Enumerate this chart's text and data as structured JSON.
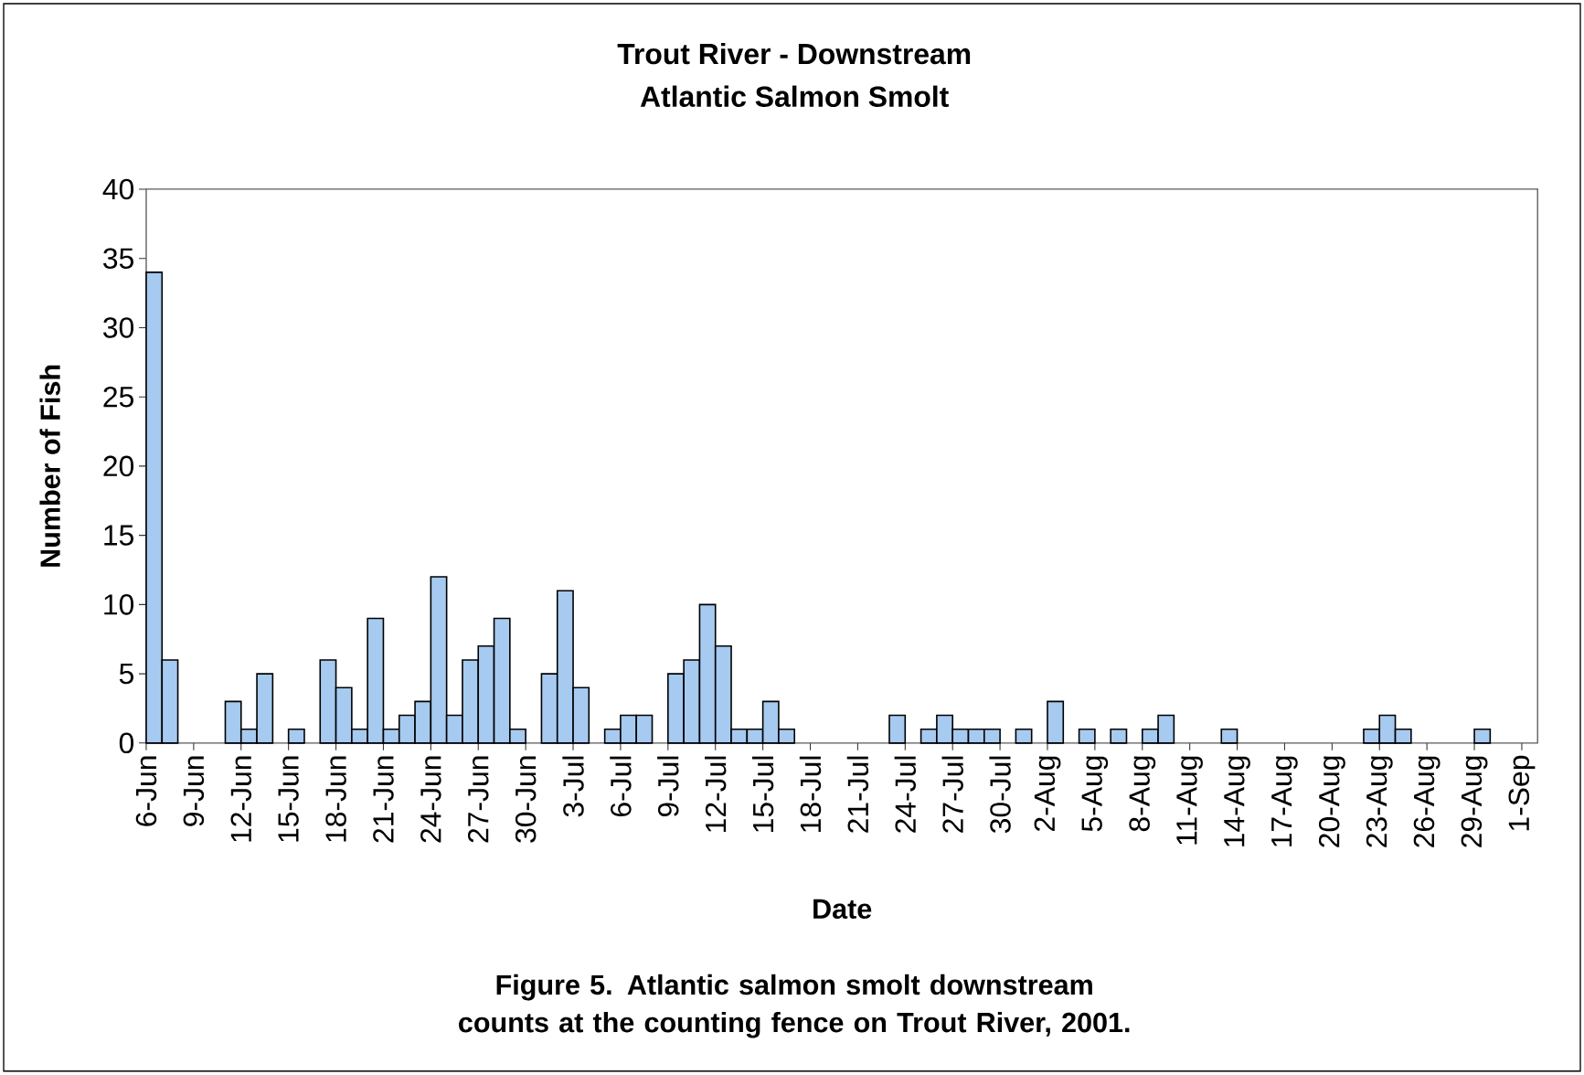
{
  "chart_data": {
    "type": "bar",
    "title": "Trout River - Downstream",
    "subtitle": "Atlantic Salmon Smolt",
    "xlabel": "Date",
    "ylabel": "Number of Fish",
    "annotations": [
      "Figure 5. Atlantic salmon smolt downstream counts at the counting fence on Trout River, 2001."
    ],
    "color": "#a6caf0",
    "x": [
      "2001-06-06T12:00",
      "2001-06-07T12:00",
      "2001-06-08T12:00",
      "2001-06-09T12:00",
      "2001-06-10T12:00",
      "2001-06-11T12:00",
      "2001-06-12T12:00",
      "2001-06-13T12:00",
      "2001-06-14T12:00",
      "2001-06-15T12:00",
      "2001-06-16T12:00",
      "2001-06-17T12:00",
      "2001-06-18T12:00",
      "2001-06-19T12:00",
      "2001-06-20T12:00",
      "2001-06-21T12:00",
      "2001-06-22T12:00",
      "2001-06-23T12:00",
      "2001-06-24T12:00",
      "2001-06-25T12:00",
      "2001-06-26T12:00",
      "2001-06-27T12:00",
      "2001-06-28T12:00",
      "2001-06-29T12:00",
      "2001-06-30T12:00",
      "2001-07-01T12:00",
      "2001-07-02T12:00",
      "2001-07-03T12:00",
      "2001-07-04T12:00",
      "2001-07-05T12:00",
      "2001-07-06T12:00",
      "2001-07-07T12:00",
      "2001-07-08T12:00",
      "2001-07-09T12:00",
      "2001-07-10T12:00",
      "2001-07-11T12:00",
      "2001-07-12T12:00",
      "2001-07-13T12:00",
      "2001-07-14T12:00",
      "2001-07-15T12:00",
      "2001-07-16T12:00",
      "2001-07-17T12:00",
      "2001-07-18T12:00",
      "2001-07-19T12:00",
      "2001-07-20T12:00",
      "2001-07-21T12:00",
      "2001-07-22T12:00",
      "2001-07-23T12:00",
      "2001-07-24T12:00",
      "2001-07-25T12:00",
      "2001-07-26T12:00",
      "2001-07-27T12:00",
      "2001-07-28T12:00",
      "2001-07-29T12:00",
      "2001-07-30T12:00",
      "2001-07-31T12:00",
      "2001-08-01T12:00",
      "2001-08-02T12:00",
      "2001-08-03T12:00",
      "2001-08-04T12:00",
      "2001-08-05T12:00",
      "2001-08-06T12:00",
      "2001-08-07T12:00",
      "2001-08-08T12:00",
      "2001-08-09T12:00",
      "2001-08-10T12:00",
      "2001-08-11T12:00",
      "2001-08-12T12:00",
      "2001-08-13T12:00",
      "2001-08-14T12:00",
      "2001-08-15T12:00",
      "2001-08-16T12:00",
      "2001-08-17T12:00",
      "2001-08-18T12:00",
      "2001-08-19T12:00",
      "2001-08-20T12:00",
      "2001-08-21T12:00",
      "2001-08-22T12:00",
      "2001-08-23T12:00",
      "2001-08-24T12:00",
      "2001-08-25T12:00",
      "2001-08-26T12:00",
      "2001-08-27T12:00",
      "2001-08-28T12:00",
      "2001-08-29T12:00",
      "2001-08-30T12:00",
      "2001-08-31T12:00",
      "2001-09-01T12:00"
    ],
    "values": [
      34,
      6,
      0,
      0,
      0,
      3,
      1,
      5,
      0,
      1,
      0,
      6,
      4,
      1,
      9,
      1,
      2,
      3,
      12,
      2,
      6,
      7,
      9,
      1,
      0,
      5,
      11,
      4,
      0,
      1,
      2,
      2,
      0,
      5,
      6,
      10,
      7,
      1,
      1,
      3,
      1,
      0,
      0,
      0,
      0,
      0,
      0,
      2,
      0,
      1,
      2,
      1,
      1,
      1,
      0,
      1,
      0,
      3,
      0,
      1,
      0,
      1,
      0,
      1,
      2,
      0,
      0,
      0,
      1,
      0,
      0,
      0,
      0,
      0,
      0,
      0,
      0,
      1,
      2,
      1,
      0,
      0,
      0,
      0,
      1,
      0,
      0,
      0
    ],
    "xlim": [
      "2001-06-06",
      "2001-09-02"
    ],
    "xticks": [
      {
        "value": "2001-06-06",
        "label": "6-Jun"
      },
      {
        "value": "2001-06-09",
        "label": "9-Jun"
      },
      {
        "value": "2001-06-12",
        "label": "12-Jun"
      },
      {
        "value": "2001-06-15",
        "label": "15-Jun"
      },
      {
        "value": "2001-06-18",
        "label": "18-Jun"
      },
      {
        "value": "2001-06-21",
        "label": "21-Jun"
      },
      {
        "value": "2001-06-24",
        "label": "24-Jun"
      },
      {
        "value": "2001-06-27",
        "label": "27-Jun"
      },
      {
        "value": "2001-06-30",
        "label": "30-Jun"
      },
      {
        "value": "2001-07-03",
        "label": "3-Jul"
      },
      {
        "value": "2001-07-06",
        "label": "6-Jul"
      },
      {
        "value": "2001-07-09",
        "label": "9-Jul"
      },
      {
        "value": "2001-07-12",
        "label": "12-Jul"
      },
      {
        "value": "2001-07-15",
        "label": "15-Jul"
      },
      {
        "value": "2001-07-18",
        "label": "18-Jul"
      },
      {
        "value": "2001-07-21",
        "label": "21-Jul"
      },
      {
        "value": "2001-07-24",
        "label": "24-Jul"
      },
      {
        "value": "2001-07-27",
        "label": "27-Jul"
      },
      {
        "value": "2001-07-30",
        "label": "30-Jul"
      },
      {
        "value": "2001-08-02",
        "label": "2-Aug"
      },
      {
        "value": "2001-08-05",
        "label": "5-Aug"
      },
      {
        "value": "2001-08-08",
        "label": "8-Aug"
      },
      {
        "value": "2001-08-11",
        "label": "11-Aug"
      },
      {
        "value": "2001-08-14",
        "label": "14-Aug"
      },
      {
        "value": "2001-08-17",
        "label": "17-Aug"
      },
      {
        "value": "2001-08-20",
        "label": "20-Aug"
      },
      {
        "value": "2001-08-23",
        "label": "23-Aug"
      },
      {
        "value": "2001-08-26",
        "label": "26-Aug"
      },
      {
        "value": "2001-08-29",
        "label": "29-Aug"
      },
      {
        "value": "2001-09-01",
        "label": "1-Sep"
      }
    ],
    "ylim": [
      0,
      40
    ],
    "yticks": [
      0,
      5,
      10,
      15,
      20,
      25,
      30,
      35,
      40
    ]
  }
}
